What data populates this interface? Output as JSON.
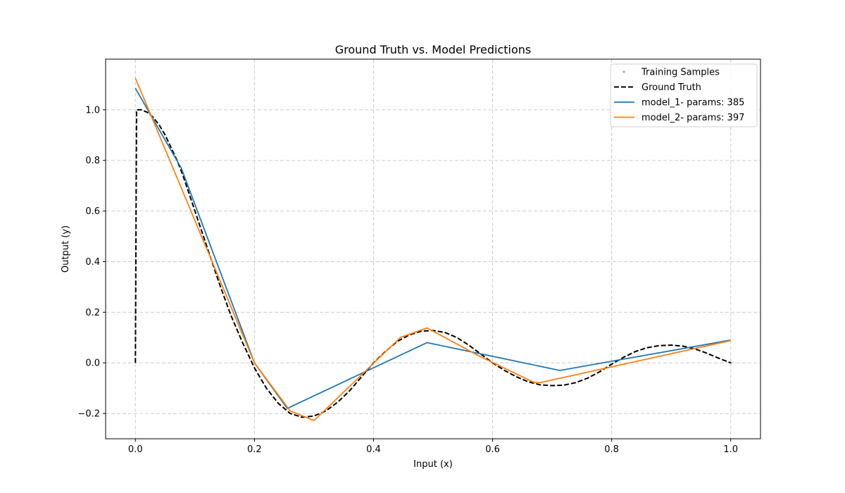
{
  "chart_data": {
    "type": "line",
    "title": "Ground Truth vs. Model Predictions",
    "xlabel": "Input (x)",
    "ylabel": "Output (y)",
    "xlim": [
      -0.05,
      1.05
    ],
    "ylim": [
      -0.3,
      1.2
    ],
    "xticks": [
      0.0,
      0.2,
      0.4,
      0.6,
      0.8,
      1.0
    ],
    "xtick_labels": [
      "0.0",
      "0.2",
      "0.4",
      "0.6",
      "0.8",
      "1.0"
    ],
    "yticks": [
      -0.2,
      0.0,
      0.2,
      0.4,
      0.6,
      0.8,
      1.0
    ],
    "ytick_labels": [
      "−0.2",
      "0.0",
      "0.2",
      "0.4",
      "0.6",
      "0.8",
      "1.0"
    ],
    "grid": true,
    "legend_position": "top-right",
    "series": [
      {
        "name": "Training Samples",
        "kind": "scatter",
        "color": "#9e9e9e",
        "points": [
          [
            1.0,
            0.0
          ]
        ]
      },
      {
        "name": "Ground Truth",
        "kind": "line",
        "style": "dashed",
        "color": "#000000",
        "points": [
          [
            0.0,
            0.0
          ],
          [
            0.002,
            1.0
          ],
          [
            0.01,
            1.0
          ],
          [
            0.02,
            0.99
          ],
          [
            0.03,
            0.97
          ],
          [
            0.04,
            0.94
          ],
          [
            0.05,
            0.9
          ],
          [
            0.06,
            0.85
          ],
          [
            0.07,
            0.8
          ],
          [
            0.08,
            0.74
          ],
          [
            0.1,
            0.6
          ],
          [
            0.12,
            0.46
          ],
          [
            0.14,
            0.32
          ],
          [
            0.16,
            0.19
          ],
          [
            0.18,
            0.08
          ],
          [
            0.2,
            -0.02
          ],
          [
            0.22,
            -0.1
          ],
          [
            0.24,
            -0.16
          ],
          [
            0.26,
            -0.2
          ],
          [
            0.28,
            -0.215
          ],
          [
            0.3,
            -0.21
          ],
          [
            0.32,
            -0.19
          ],
          [
            0.34,
            -0.155
          ],
          [
            0.36,
            -0.11
          ],
          [
            0.38,
            -0.055
          ],
          [
            0.4,
            0.0
          ],
          [
            0.42,
            0.045
          ],
          [
            0.44,
            0.085
          ],
          [
            0.46,
            0.11
          ],
          [
            0.48,
            0.125
          ],
          [
            0.5,
            0.128
          ],
          [
            0.52,
            0.12
          ],
          [
            0.54,
            0.1
          ],
          [
            0.56,
            0.07
          ],
          [
            0.58,
            0.035
          ],
          [
            0.6,
            0.0
          ],
          [
            0.62,
            -0.03
          ],
          [
            0.64,
            -0.055
          ],
          [
            0.66,
            -0.075
          ],
          [
            0.68,
            -0.087
          ],
          [
            0.7,
            -0.09
          ],
          [
            0.72,
            -0.088
          ],
          [
            0.74,
            -0.078
          ],
          [
            0.76,
            -0.06
          ],
          [
            0.78,
            -0.035
          ],
          [
            0.8,
            -0.005
          ],
          [
            0.82,
            0.022
          ],
          [
            0.84,
            0.045
          ],
          [
            0.86,
            0.06
          ],
          [
            0.88,
            0.068
          ],
          [
            0.9,
            0.07
          ],
          [
            0.92,
            0.066
          ],
          [
            0.94,
            0.055
          ],
          [
            0.96,
            0.038
          ],
          [
            0.98,
            0.018
          ],
          [
            1.0,
            0.0
          ]
        ]
      },
      {
        "name": "model_1- params: 385",
        "kind": "line",
        "color": "#1f77b4",
        "points": [
          [
            0.0,
            1.085
          ],
          [
            0.077,
            0.77
          ],
          [
            0.2,
            0.0
          ],
          [
            0.255,
            -0.18
          ],
          [
            0.49,
            0.08
          ],
          [
            0.713,
            -0.03
          ],
          [
            1.0,
            0.09
          ]
        ]
      },
      {
        "name": "model_2- params: 397",
        "kind": "line",
        "color": "#ff7f0e",
        "points": [
          [
            0.0,
            1.125
          ],
          [
            0.2,
            0.0
          ],
          [
            0.26,
            -0.19
          ],
          [
            0.3,
            -0.228
          ],
          [
            0.37,
            -0.07
          ],
          [
            0.445,
            0.1
          ],
          [
            0.49,
            0.138
          ],
          [
            0.575,
            0.03
          ],
          [
            0.67,
            -0.078
          ],
          [
            0.68,
            -0.078
          ],
          [
            1.0,
            0.088
          ]
        ]
      }
    ]
  }
}
